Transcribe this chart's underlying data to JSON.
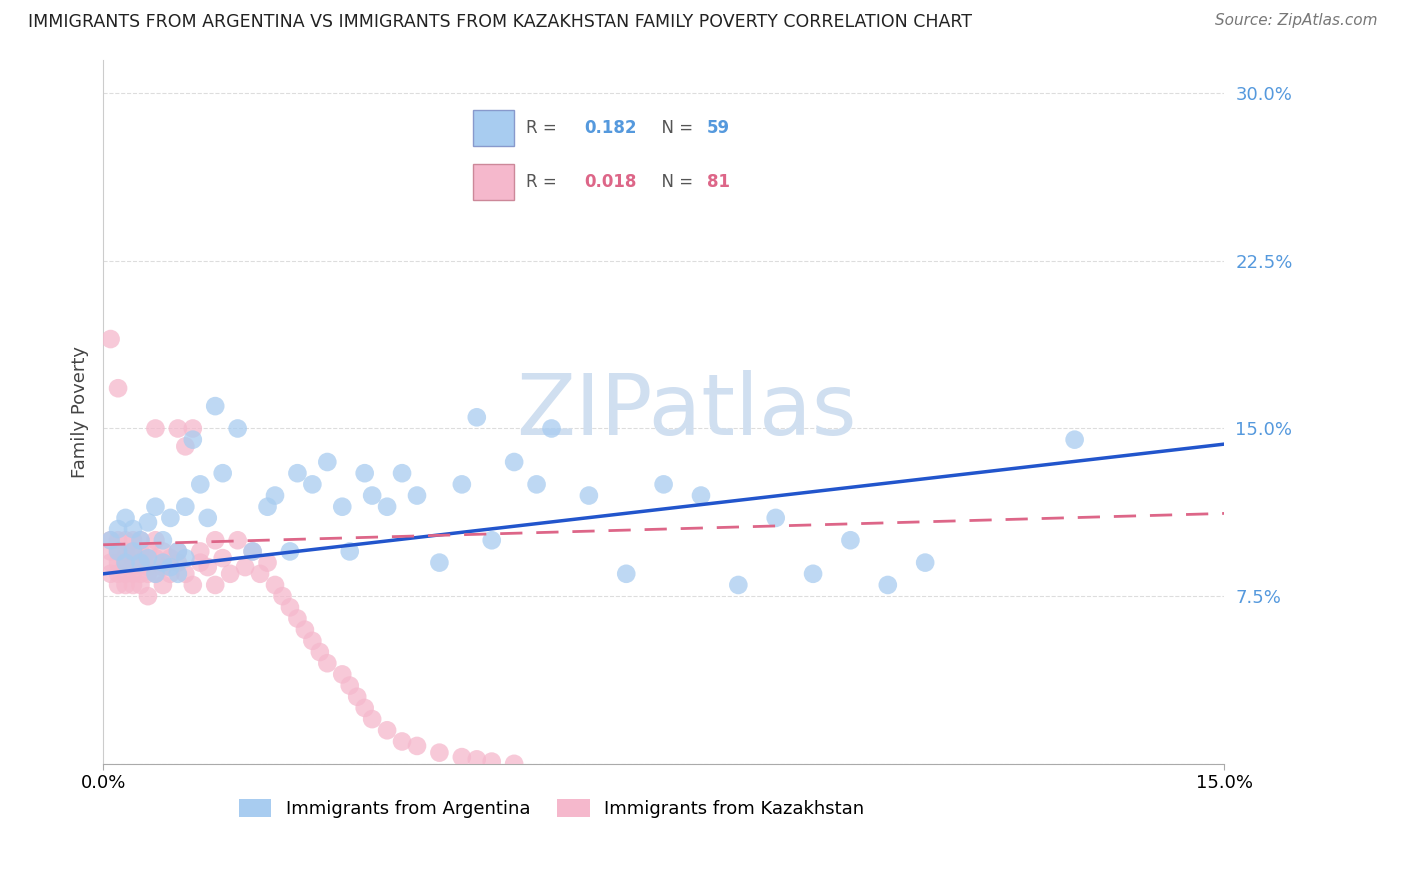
{
  "title": "IMMIGRANTS FROM ARGENTINA VS IMMIGRANTS FROM KAZAKHSTAN FAMILY POVERTY CORRELATION CHART",
  "source": "Source: ZipAtlas.com",
  "ylabel": "Family Poverty",
  "xlim": [
    0.0,
    0.15
  ],
  "ylim": [
    0.0,
    0.315
  ],
  "ytick_vals": [
    0.0,
    0.075,
    0.15,
    0.225,
    0.3
  ],
  "ytick_labels": [
    "",
    "7.5%",
    "15.0%",
    "22.5%",
    "30.0%"
  ],
  "xtick_vals": [
    0.0,
    0.15
  ],
  "xtick_labels": [
    "0.0%",
    "15.0%"
  ],
  "color_argentina": "#A8CCF0",
  "color_kazakhstan": "#F5B8CC",
  "color_argentina_line": "#2255CC",
  "color_kazakhstan_line": "#DD6688",
  "color_yticklabel": "#5599DD",
  "watermark_color": "#D0DFF0",
  "legend_label1": "Immigrants from Argentina",
  "legend_label2": "Immigrants from Kazakhstan",
  "argentina_x": [
    0.001,
    0.002,
    0.002,
    0.003,
    0.003,
    0.004,
    0.004,
    0.005,
    0.005,
    0.006,
    0.006,
    0.007,
    0.007,
    0.008,
    0.008,
    0.009,
    0.009,
    0.01,
    0.01,
    0.011,
    0.011,
    0.012,
    0.013,
    0.014,
    0.015,
    0.016,
    0.018,
    0.02,
    0.022,
    0.023,
    0.025,
    0.026,
    0.028,
    0.03,
    0.032,
    0.033,
    0.035,
    0.036,
    0.038,
    0.04,
    0.042,
    0.045,
    0.048,
    0.05,
    0.052,
    0.055,
    0.058,
    0.06,
    0.065,
    0.07,
    0.075,
    0.08,
    0.085,
    0.09,
    0.095,
    0.1,
    0.105,
    0.11,
    0.13
  ],
  "argentina_y": [
    0.1,
    0.095,
    0.105,
    0.09,
    0.11,
    0.095,
    0.105,
    0.09,
    0.1,
    0.092,
    0.108,
    0.085,
    0.115,
    0.09,
    0.1,
    0.088,
    0.11,
    0.085,
    0.095,
    0.092,
    0.115,
    0.145,
    0.125,
    0.11,
    0.16,
    0.13,
    0.15,
    0.095,
    0.115,
    0.12,
    0.095,
    0.13,
    0.125,
    0.135,
    0.115,
    0.095,
    0.13,
    0.12,
    0.115,
    0.13,
    0.12,
    0.09,
    0.125,
    0.155,
    0.1,
    0.135,
    0.125,
    0.15,
    0.12,
    0.085,
    0.125,
    0.12,
    0.08,
    0.11,
    0.085,
    0.1,
    0.08,
    0.09,
    0.145
  ],
  "kazakhstan_x": [
    0.001,
    0.001,
    0.001,
    0.001,
    0.001,
    0.002,
    0.002,
    0.002,
    0.002,
    0.002,
    0.002,
    0.003,
    0.003,
    0.003,
    0.003,
    0.003,
    0.003,
    0.004,
    0.004,
    0.004,
    0.004,
    0.004,
    0.004,
    0.005,
    0.005,
    0.005,
    0.005,
    0.005,
    0.006,
    0.006,
    0.006,
    0.006,
    0.007,
    0.007,
    0.007,
    0.007,
    0.008,
    0.008,
    0.008,
    0.009,
    0.009,
    0.01,
    0.01,
    0.01,
    0.011,
    0.011,
    0.012,
    0.012,
    0.013,
    0.013,
    0.014,
    0.015,
    0.015,
    0.016,
    0.017,
    0.018,
    0.019,
    0.02,
    0.021,
    0.022,
    0.023,
    0.024,
    0.025,
    0.026,
    0.027,
    0.028,
    0.029,
    0.03,
    0.032,
    0.033,
    0.034,
    0.035,
    0.036,
    0.038,
    0.04,
    0.042,
    0.045,
    0.048,
    0.05,
    0.052,
    0.055
  ],
  "kazakhstan_y": [
    0.19,
    0.1,
    0.09,
    0.095,
    0.085,
    0.168,
    0.1,
    0.095,
    0.09,
    0.085,
    0.08,
    0.095,
    0.09,
    0.085,
    0.1,
    0.092,
    0.08,
    0.088,
    0.095,
    0.1,
    0.085,
    0.092,
    0.08,
    0.095,
    0.09,
    0.085,
    0.08,
    0.1,
    0.088,
    0.095,
    0.085,
    0.075,
    0.092,
    0.1,
    0.085,
    0.15,
    0.088,
    0.095,
    0.08,
    0.092,
    0.085,
    0.095,
    0.09,
    0.15,
    0.085,
    0.142,
    0.08,
    0.15,
    0.09,
    0.095,
    0.088,
    0.08,
    0.1,
    0.092,
    0.085,
    0.1,
    0.088,
    0.095,
    0.085,
    0.09,
    0.08,
    0.075,
    0.07,
    0.065,
    0.06,
    0.055,
    0.05,
    0.045,
    0.04,
    0.035,
    0.03,
    0.025,
    0.02,
    0.015,
    0.01,
    0.008,
    0.005,
    0.003,
    0.002,
    0.001,
    0.0
  ],
  "arg_trend_x0": 0.0,
  "arg_trend_y0": 0.085,
  "arg_trend_x1": 0.15,
  "arg_trend_y1": 0.143,
  "kaz_trend_x0": 0.0,
  "kaz_trend_y0": 0.098,
  "kaz_trend_x1": 0.15,
  "kaz_trend_y1": 0.112
}
